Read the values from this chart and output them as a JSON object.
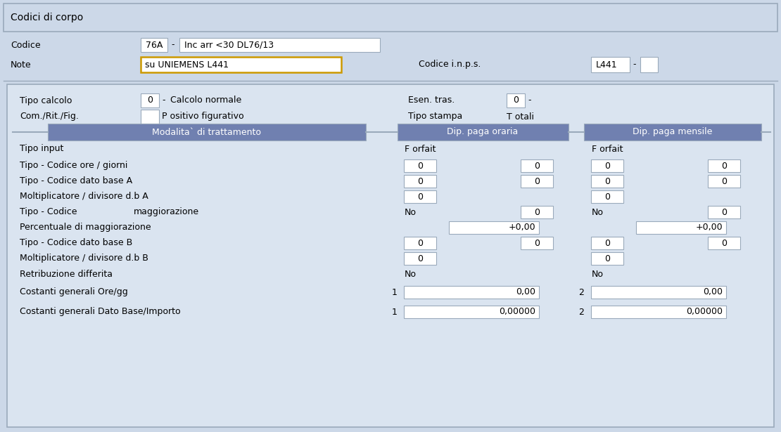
{
  "bg_color": "#ccd8e8",
  "field_bg": "#ffffff",
  "field_border": "#9aaabb",
  "note_border": "#cc9900",
  "header_bg": "#7080b0",
  "header_text": "#ffffff",
  "panel_bg": "#dae4f0",
  "panel_border": "#9aaabb",
  "text_color": "#111111",
  "title_bar_text": "Codici di corpo",
  "codice_label": "Codice",
  "codice_val1": "76A",
  "codice_dash": "-",
  "codice_val2": "Inc arr <30 DL76/13",
  "note_label": "Note",
  "note_val": "su UNIEMENS L441",
  "inps_label": "Codice i.n.p.s.",
  "inps_val": "L441",
  "tipo_calcolo_label": "Tipo calcolo",
  "tipo_calcolo_val": "0",
  "tipo_calcolo_desc": "Calcolo normale",
  "esen_tras_label": "Esen. tras.",
  "esen_tras_val": "0",
  "com_rit_label": "Com./Rit./Fig.",
  "com_rit_val": "P ositivo figurativo",
  "tipo_stampa_label": "Tipo stampa",
  "tipo_stampa_val": "T otali",
  "col1_header": "Modalita` di trattamento",
  "col2_header": "Dip. paga oraria",
  "col3_header": "Dip. paga mensile",
  "row_labels": [
    "Tipo input",
    "Tipo - Codice ore / giorni",
    "Tipo - Codice dato base A",
    "Moltiplicatore / divisore d.b A",
    "Tipo - Codice",
    "Percentuale di maggiorazione",
    "Tipo - Codice dato base B",
    "Moltiplicatore / divisore d.b B",
    "Retribuzione differita",
    "Costanti generali Ore/gg",
    "Costanti generali Dato Base/Importo"
  ],
  "col2_data": [
    [
      "F orfait",
      "",
      ""
    ],
    [
      "",
      "0",
      "0"
    ],
    [
      "",
      "0",
      "0"
    ],
    [
      "",
      "0",
      ""
    ],
    [
      "No",
      "",
      "0"
    ],
    [
      "",
      "+0,00",
      ""
    ],
    [
      "",
      "0",
      "0"
    ],
    [
      "",
      "0",
      ""
    ],
    [
      "No",
      "",
      ""
    ],
    [
      "1",
      "",
      "0,00"
    ],
    [
      "1",
      "",
      "0,00000"
    ]
  ],
  "col3_data": [
    [
      "F orfait",
      "",
      ""
    ],
    [
      "",
      "0",
      "0"
    ],
    [
      "",
      "0",
      "0"
    ],
    [
      "",
      "0",
      ""
    ],
    [
      "No",
      "",
      "0"
    ],
    [
      "",
      "+0,00",
      ""
    ],
    [
      "",
      "0",
      "0"
    ],
    [
      "",
      "0",
      ""
    ],
    [
      "No",
      "",
      ""
    ],
    [
      "2",
      "",
      "0,00"
    ],
    [
      "2",
      "",
      "0,00000"
    ]
  ],
  "figw": 11.1,
  "figh": 6.15,
  "dpi": 100
}
